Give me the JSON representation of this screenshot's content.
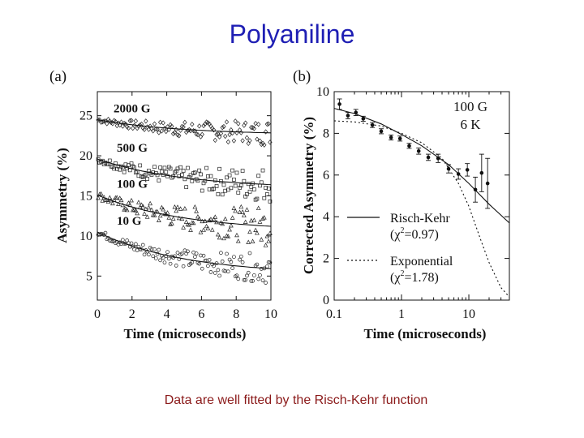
{
  "slide": {
    "title": "Polyaniline",
    "caption": "Data are well fitted by the Risch-Kehr function"
  },
  "colors": {
    "title": "#1f1fb4",
    "caption": "#8b1a1a",
    "ink": "#111111"
  },
  "chart_data": [
    {
      "panel": "(a)",
      "type": "scatter",
      "xlabel": "Time (microseconds)",
      "ylabel": "Asymmetry (%)",
      "xlim": [
        0,
        10
      ],
      "ylim": [
        2,
        28
      ],
      "xticks": [
        "0",
        "2",
        "4",
        "6",
        "8",
        "10"
      ],
      "yticks": [
        "5",
        "10",
        "15",
        "20",
        "25"
      ],
      "series": [
        {
          "name": "2000 G",
          "marker": "diamond",
          "fit_start": 24.5,
          "fit_end": 22.6,
          "spread": 1.1
        },
        {
          "name": "500 G",
          "marker": "square",
          "fit_start": 19.6,
          "fit_end": 15.9,
          "spread": 1.5
        },
        {
          "name": "100 G",
          "marker": "triangle",
          "fit_start": 15.1,
          "fit_end": 10.6,
          "spread": 1.7
        },
        {
          "name": "10 G",
          "marker": "circle",
          "fit_start": 10.5,
          "fit_end": 5.2,
          "spread": 1.3
        }
      ]
    },
    {
      "panel": "(b)",
      "type": "line",
      "xscale": "log",
      "xlabel": "Time (microseconds)",
      "ylabel": "Corrected Asymmetry (%)",
      "xlim": [
        0.1,
        40
      ],
      "ylim": [
        0,
        10
      ],
      "xticks": [
        "0.1",
        "1",
        "10"
      ],
      "yticks": [
        "0",
        "2",
        "4",
        "6",
        "8",
        "10"
      ],
      "annotation": [
        "100 G",
        "6 K"
      ],
      "points": {
        "x": [
          0.12,
          0.16,
          0.21,
          0.27,
          0.37,
          0.5,
          0.7,
          0.95,
          1.3,
          1.8,
          2.5,
          3.5,
          5,
          7,
          9.5,
          12.5,
          15.5,
          19
        ],
        "y": [
          9.4,
          8.85,
          9.0,
          8.7,
          8.4,
          8.1,
          7.8,
          7.75,
          7.4,
          7.15,
          6.85,
          6.8,
          6.3,
          6.05,
          6.25,
          5.3,
          6.1,
          5.6
        ],
        "err": [
          0.25,
          0.15,
          0.15,
          0.12,
          0.12,
          0.12,
          0.12,
          0.12,
          0.12,
          0.15,
          0.15,
          0.2,
          0.2,
          0.25,
          0.3,
          0.6,
          0.9,
          1.2
        ]
      },
      "series": [
        {
          "name": "Risch-Kehr",
          "chi2": "0.97",
          "style": "solid",
          "x": [
            0.1,
            0.2,
            0.5,
            1,
            2,
            5,
            10,
            20,
            40
          ],
          "y": [
            9.2,
            8.95,
            8.45,
            7.95,
            7.4,
            6.5,
            5.6,
            4.6,
            3.7
          ]
        },
        {
          "name": "Exponential",
          "chi2": "1.78",
          "style": "dotted",
          "x": [
            0.1,
            0.2,
            0.5,
            1,
            2,
            4,
            7,
            10,
            15,
            20,
            30,
            40
          ],
          "y": [
            8.6,
            8.55,
            8.35,
            8.0,
            7.55,
            6.8,
            5.6,
            4.5,
            2.9,
            1.8,
            0.6,
            0.15
          ]
        }
      ]
    }
  ]
}
